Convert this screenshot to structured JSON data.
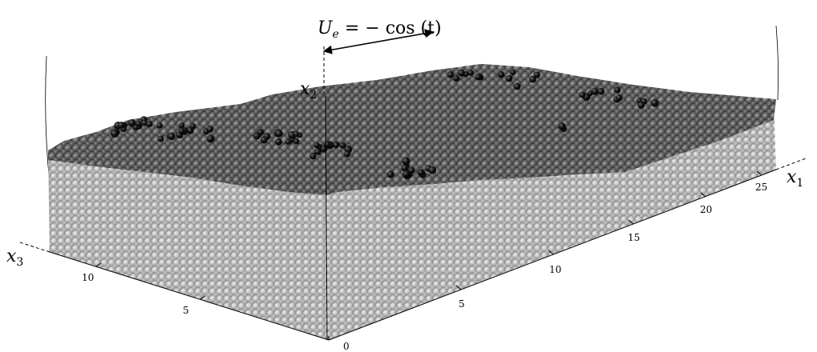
{
  "formula": {
    "lhs": "U",
    "sub": "e",
    "rhs": " = − cos (t)"
  },
  "axes": {
    "x1": {
      "main": "x",
      "sub": "1",
      "ticks": [
        "25",
        "20",
        "15",
        "10",
        "5",
        "0"
      ]
    },
    "x2": {
      "main": "x",
      "sub": "2"
    },
    "x3": {
      "main": "x",
      "sub": "3",
      "ticks": [
        "10",
        "5"
      ]
    }
  },
  "colors": {
    "bed_particles": "#b0b0b0",
    "surface_particles": "#5a5a5a",
    "marked_particles": "#0d0d0d"
  }
}
